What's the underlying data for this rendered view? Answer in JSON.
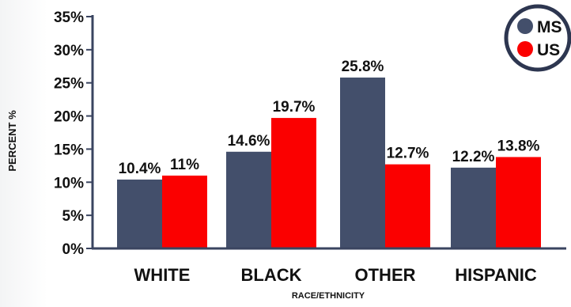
{
  "chart_data": {
    "type": "bar",
    "title": "",
    "xlabel": "RACE/ETHNICITY",
    "ylabel": "PERCENT %",
    "categories": [
      "WHITE",
      "BLACK",
      "OTHER",
      "HISPANIC"
    ],
    "series": [
      {
        "name": "MS",
        "color": "#434f6b",
        "values": [
          10.4,
          14.6,
          25.8,
          12.2
        ],
        "labels": [
          "10.4%",
          "14.6%",
          "25.8%",
          "12.2%"
        ]
      },
      {
        "name": "US",
        "color": "#fb0000",
        "values": [
          11.0,
          19.7,
          12.7,
          13.8
        ],
        "labels": [
          "11%",
          "19.7%",
          "12.7%",
          "13.8%"
        ]
      }
    ],
    "ylim": [
      0,
      35
    ],
    "yticks": [
      "0%",
      "5%",
      "10%",
      "15%",
      "20%",
      "25%",
      "30%",
      "35%"
    ],
    "grid": false,
    "legend_position": "top-right"
  }
}
